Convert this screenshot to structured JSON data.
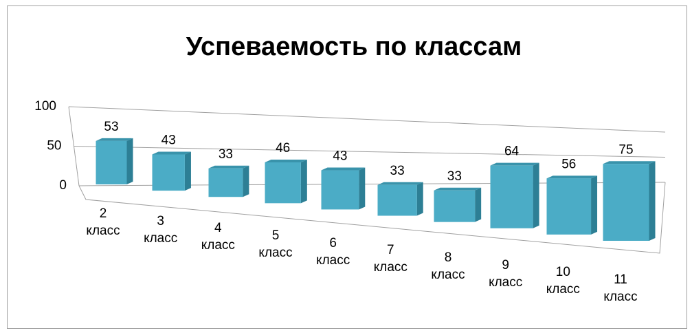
{
  "chart_data": {
    "type": "bar3d",
    "title": "Успеваемость по классам",
    "categories": [
      "2 класс",
      "3 класс",
      "4 класс",
      "5 класс",
      "6 класс",
      "7 класс",
      "8 класс",
      "9 класс",
      "10 класс",
      "11 класс"
    ],
    "values": [
      53,
      43,
      33,
      46,
      43,
      33,
      33,
      64,
      56,
      75
    ],
    "color": "#4bacc6",
    "ylim": [
      0,
      100
    ],
    "yticks": [
      0,
      50,
      100
    ],
    "grid": true
  }
}
